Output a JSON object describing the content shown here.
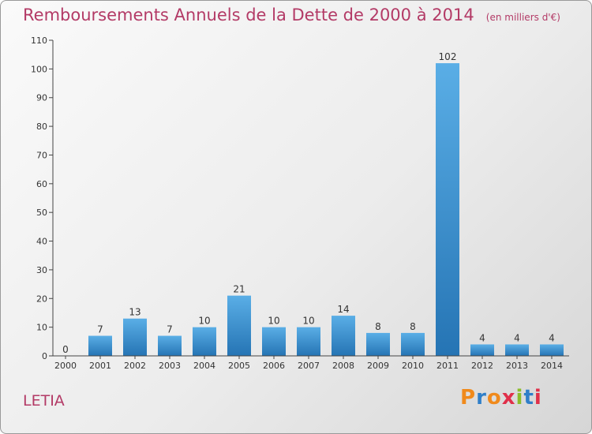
{
  "header": {
    "title": "Remboursements Annuels de la Dette de 2000 à 2014",
    "unit": "(en milliers d'€)"
  },
  "commune": "LETIA",
  "logo": {
    "text": "Proxiti",
    "letter_colors": [
      "#f08a1c",
      "#2f7fc9",
      "#f08a1c",
      "#e0304a",
      "#8bbd2a",
      "#2f7fc9",
      "#e0304a"
    ]
  },
  "colors": {
    "title": "#b33a66",
    "bar_top": "#5aaee6",
    "bar_bottom": "#2574b4",
    "axis": "#444444"
  },
  "chart_data": {
    "type": "bar",
    "categories": [
      "2000",
      "2001",
      "2002",
      "2003",
      "2004",
      "2005",
      "2006",
      "2007",
      "2008",
      "2009",
      "2010",
      "2011",
      "2012",
      "2013",
      "2014"
    ],
    "values": [
      0,
      7,
      13,
      7,
      10,
      21,
      10,
      10,
      14,
      8,
      8,
      102,
      4,
      4,
      4
    ],
    "yticks": [
      "0",
      "10",
      "20",
      "30",
      "40",
      "50",
      "60",
      "70",
      "80",
      "90",
      "100",
      "110"
    ],
    "ylim": [
      0,
      110
    ],
    "xlabel": "",
    "ylabel": "",
    "grid": false,
    "legend": "none"
  }
}
